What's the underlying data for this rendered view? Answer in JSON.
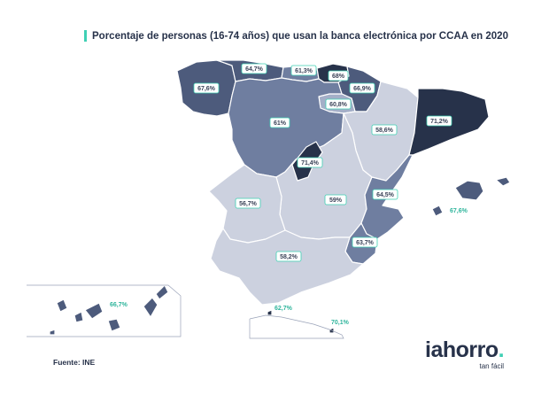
{
  "title": "Porcentaje de personas (16-74 años) que usan la banca electrónica por CCAA en 2020",
  "source": "Fuente: INE",
  "logo": {
    "name": "iahorro",
    "dot": ".",
    "tagline": "tan fácil"
  },
  "colors": {
    "accent": "#3fd0b4",
    "darkest": "#27324a",
    "dark": "#4d5b7c",
    "medium": "#6f7ea0",
    "light": "#a4afc8",
    "lightest": "#ccd1df"
  },
  "regions": [
    {
      "id": "galicia",
      "value": "67,6%"
    },
    {
      "id": "asturias",
      "value": "64,7%"
    },
    {
      "id": "cantabria",
      "value": "61,3%"
    },
    {
      "id": "pais-vasco",
      "value": "68%"
    },
    {
      "id": "navarra",
      "value": "66,9%"
    },
    {
      "id": "la-rioja",
      "value": "60,8%"
    },
    {
      "id": "castilla-leon",
      "value": "61%"
    },
    {
      "id": "aragon",
      "value": "58,6%"
    },
    {
      "id": "cataluna",
      "value": "71,2%"
    },
    {
      "id": "madrid",
      "value": "71,4%"
    },
    {
      "id": "extremadura",
      "value": "56,7%"
    },
    {
      "id": "castilla-la-mancha",
      "value": "59%"
    },
    {
      "id": "valencia",
      "value": "64,5%"
    },
    {
      "id": "murcia",
      "value": "63,7%"
    },
    {
      "id": "andalucia",
      "value": "58,2%"
    },
    {
      "id": "baleares",
      "value": "67,6%"
    },
    {
      "id": "canarias",
      "value": "66,7%"
    },
    {
      "id": "ceuta",
      "value": "62,7%"
    },
    {
      "id": "melilla",
      "value": "70,1%"
    }
  ]
}
